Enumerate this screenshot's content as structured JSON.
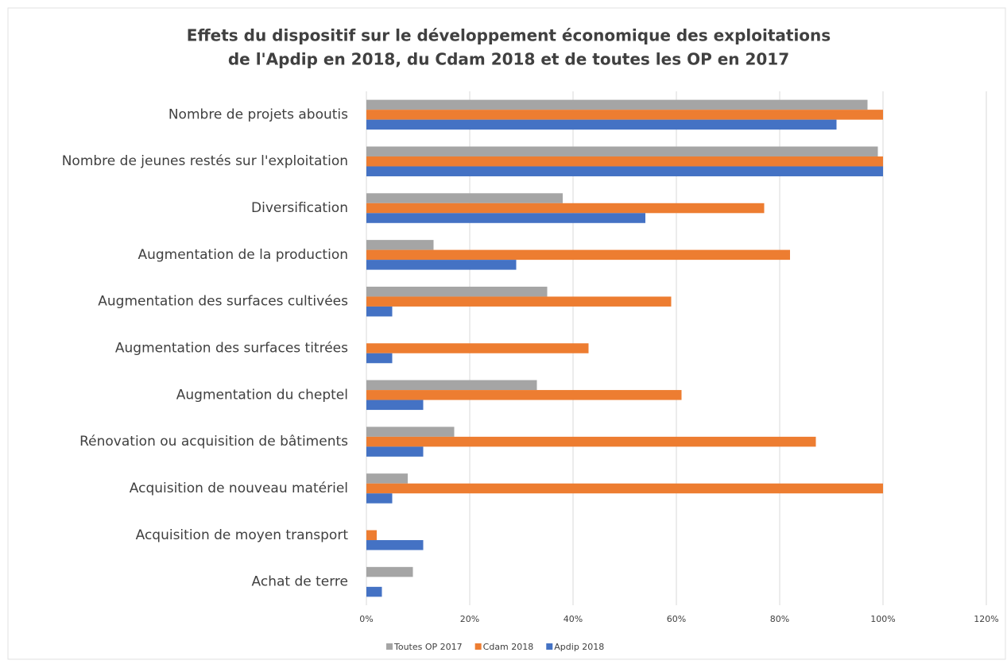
{
  "chart_data": {
    "type": "hbar",
    "title": [
      "Effets du dispositif sur le développement économique des exploitations",
      "de l'Apdip en 2018, du Cdam 2018 et de toutes les OP en 2017"
    ],
    "categories": [
      "Nombre de projets aboutis",
      "Nombre de jeunes restés sur l'exploitation",
      "Diversification",
      "Augmentation de la production",
      "Augmentation des surfaces cultivées",
      "Augmentation des surfaces titrées",
      "Augmentation du cheptel",
      "Rénovation ou acquisition de bâtiments",
      "Acquisition de nouveau matériel",
      "Acquisition de moyen transport",
      "Achat de terre"
    ],
    "series": [
      {
        "name": "Toutes OP 2017",
        "color": "#a5a5a5",
        "values": [
          97,
          99,
          38,
          13,
          35,
          0,
          33,
          17,
          8,
          0,
          9
        ]
      },
      {
        "name": "Cdam 2018",
        "color": "#ed7d31",
        "values": [
          100,
          100,
          77,
          82,
          59,
          43,
          61,
          87,
          100,
          2,
          0
        ]
      },
      {
        "name": "Apdip 2018",
        "color": "#4472c4",
        "values": [
          91,
          100,
          54,
          29,
          5,
          5,
          11,
          11,
          5,
          11,
          3
        ]
      }
    ],
    "xlim": [
      0,
      120
    ],
    "xticks": [
      {
        "value": 0,
        "label": "0%"
      },
      {
        "value": 20,
        "label": "20%"
      },
      {
        "value": 40,
        "label": "40%"
      },
      {
        "value": 60,
        "label": "60%"
      },
      {
        "value": 80,
        "label": "80%"
      },
      {
        "value": 100,
        "label": "100%"
      },
      {
        "value": 120,
        "label": "120%"
      }
    ],
    "grid": true,
    "legend": "bottom"
  }
}
